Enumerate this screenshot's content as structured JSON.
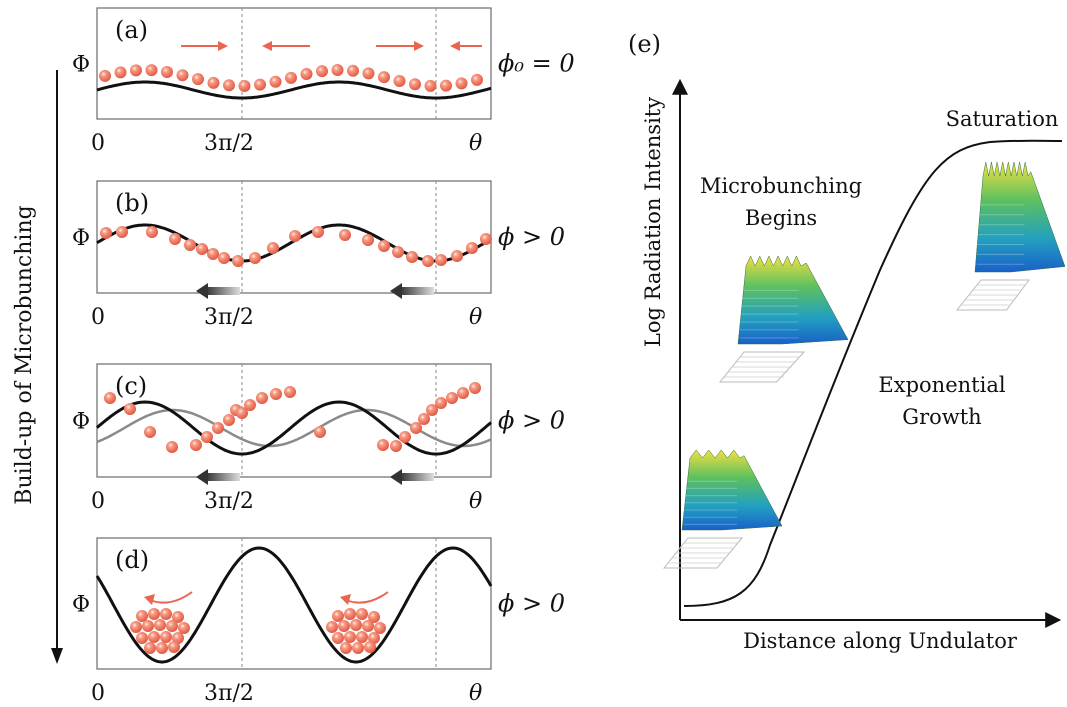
{
  "left_panel": {
    "side_label": "Build-up of Microbunching",
    "panels": [
      {
        "id": "a",
        "tag": "(a)",
        "ylabel": "Φ",
        "phase_label": "ϕ₀ = 0",
        "x_ticks": [
          "0",
          "3π/2",
          "θ"
        ]
      },
      {
        "id": "b",
        "tag": "(b)",
        "ylabel": "Φ",
        "phase_label": "ϕ > 0",
        "x_ticks": [
          "0",
          "3π/2",
          "θ"
        ]
      },
      {
        "id": "c",
        "tag": "(c)",
        "ylabel": "Φ",
        "phase_label": "ϕ > 0",
        "x_ticks": [
          "0",
          "3π/2",
          "θ"
        ]
      },
      {
        "id": "d",
        "tag": "(d)",
        "ylabel": "Φ",
        "phase_label": "ϕ > 0",
        "x_ticks": [
          "0",
          "3π/2",
          "θ"
        ]
      }
    ]
  },
  "right_panel": {
    "tag": "(e)",
    "ylabel": "Log Radiation Intensity",
    "xlabel": "Distance along Undulator",
    "annotations": {
      "microbunching_line1": "Microbunching",
      "microbunching_line2": "Begins",
      "exponential_line1": "Exponential",
      "exponential_line2": "Growth",
      "saturation": "Saturation"
    }
  },
  "colors": {
    "particle": "#ef6e58",
    "arrow_red": "#e96550",
    "curve": "#111111",
    "ghost_curve": "#8a8a8a",
    "frame": "#6a6a6a"
  }
}
